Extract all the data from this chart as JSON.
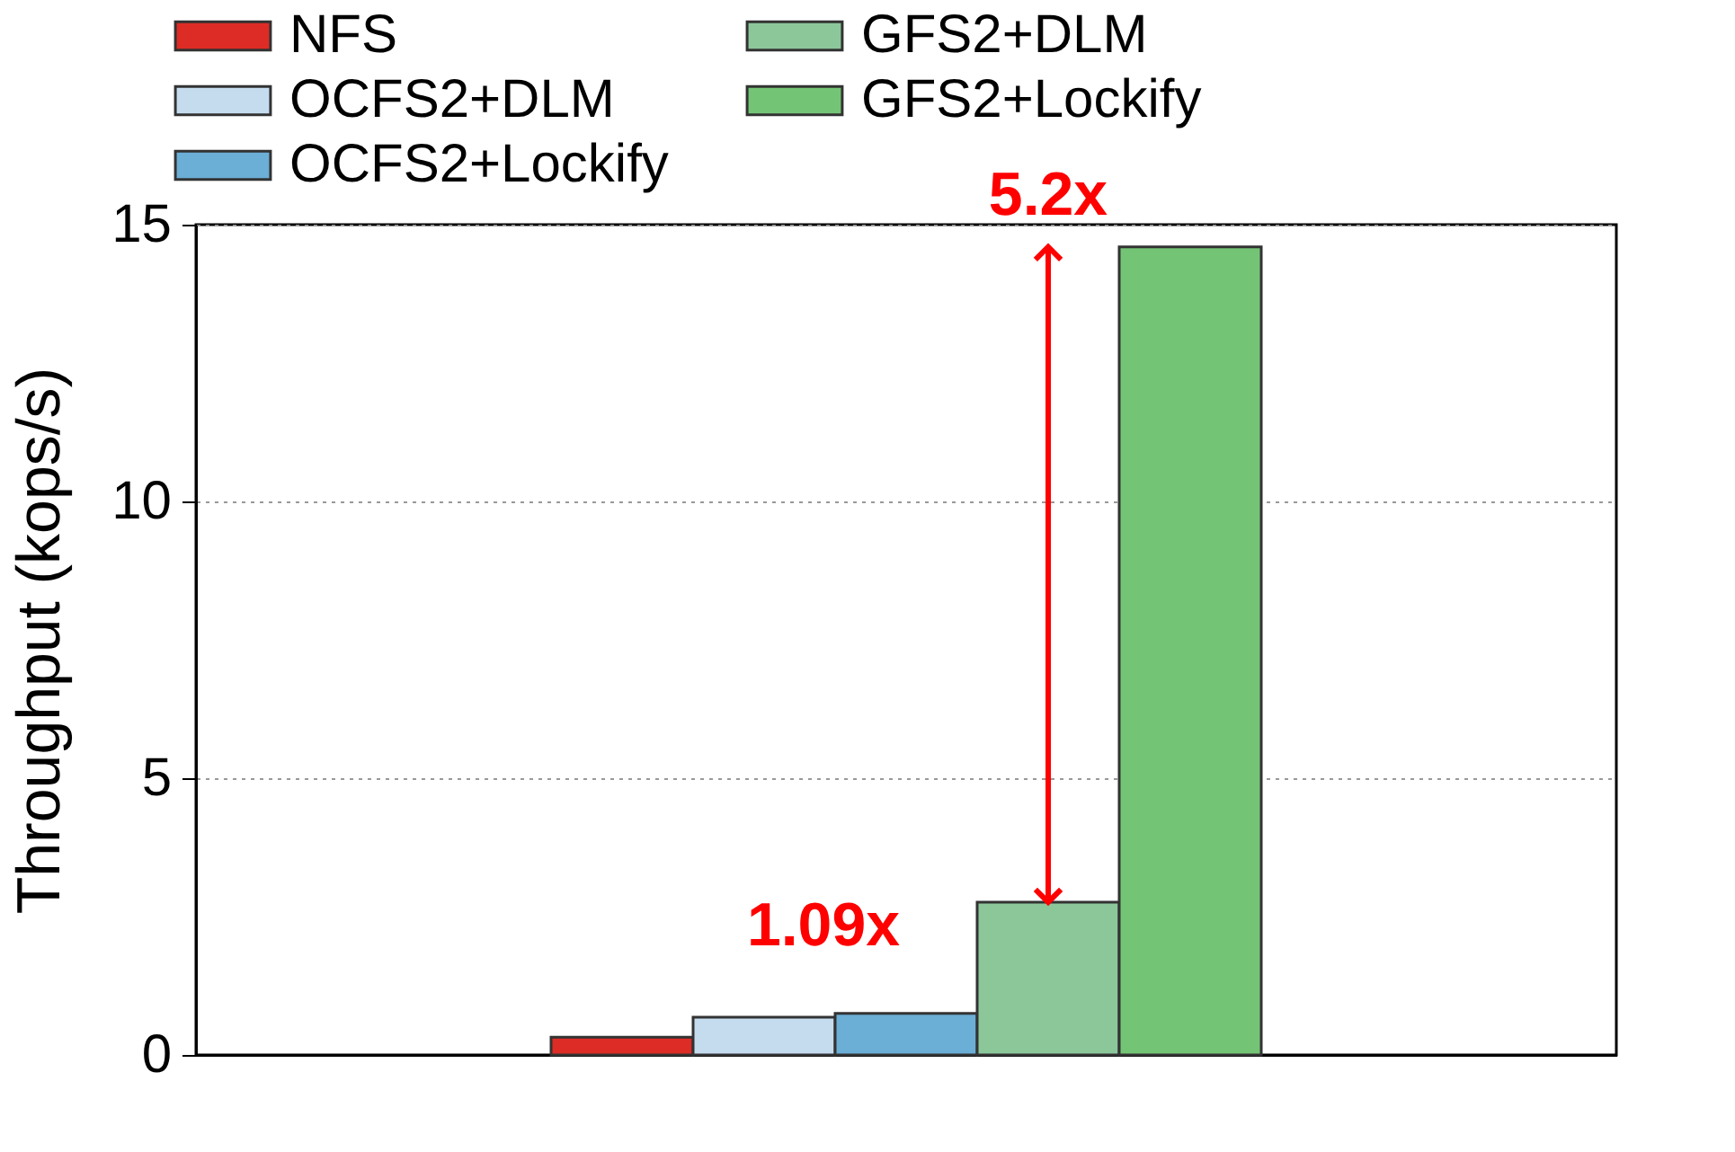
{
  "chart_data": {
    "type": "bar",
    "ylabel": "Throughput (kops/s)",
    "categories": [
      null
    ],
    "series": [
      {
        "name": "NFS",
        "color": "#dd2c25",
        "values": [
          0.32
        ]
      },
      {
        "name": "OCFS2+DLM",
        "color": "#c5dcef",
        "values": [
          0.68
        ]
      },
      {
        "name": "OCFS2+Lockify",
        "color": "#6baed6",
        "values": [
          0.75
        ]
      },
      {
        "name": "GFS2+DLM",
        "color": "#8cc79a",
        "values": [
          2.76
        ]
      },
      {
        "name": "GFS2+Lockify",
        "color": "#74c476",
        "values": [
          14.6
        ]
      }
    ],
    "ylim": [
      0,
      15
    ],
    "yticks": [
      0,
      5,
      10,
      15
    ],
    "grid": "y",
    "legend": "top",
    "tick_labels": "y",
    "annotations": [
      "1.09x",
      "5.2x"
    ]
  }
}
